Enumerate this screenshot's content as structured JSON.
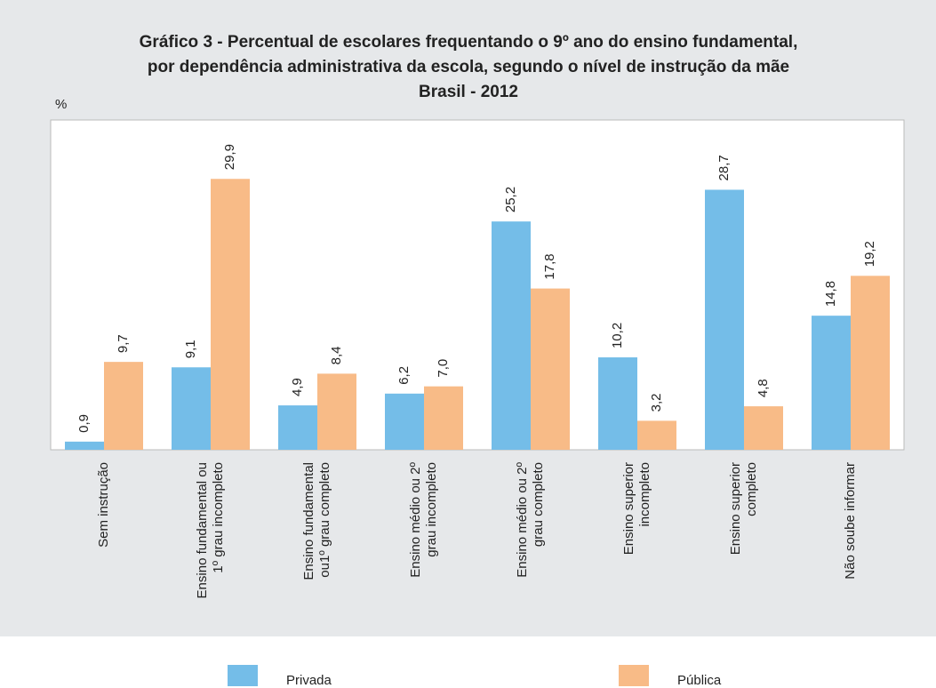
{
  "chart_data": {
    "type": "bar",
    "title": "Gráfico 3 - Percentual de escolares frequentando o 9º ano do ensino fundamental,\npor dependência administrativa da escola, segundo o nível de instrução da mãe",
    "subtitle": "Brasil - 2012",
    "y_label": "%",
    "categories": [
      "Sem instrução",
      "Ensino fundamental ou\n1º grau incompleto",
      "Ensino fundamental\nou1º grau completo",
      "Ensino médio ou 2º\ngrau incompleto",
      "Ensino médio ou 2º\ngrau completo",
      "Ensino superior\nincompleto",
      "Ensino superior\ncompleto",
      "Não soube informar"
    ],
    "series": [
      {
        "name": "Privada",
        "color": "#74bde8",
        "values": [
          0.9,
          9.1,
          4.9,
          6.2,
          25.2,
          10.2,
          28.7,
          14.8
        ],
        "value_labels": [
          "0,9",
          "9,1",
          "4,9",
          "6,2",
          "25,2",
          "10,2",
          "28,7",
          "14,8"
        ]
      },
      {
        "name": "Pública",
        "color": "#f8bb87",
        "values": [
          9.7,
          29.9,
          8.4,
          7.0,
          17.8,
          3.2,
          4.8,
          19.2
        ],
        "value_labels": [
          "9,7",
          "29,9",
          "8,4",
          "7,0",
          "17,8",
          "3,2",
          "4,8",
          "19,2"
        ]
      }
    ],
    "ylim": [
      0,
      36.4
    ]
  }
}
